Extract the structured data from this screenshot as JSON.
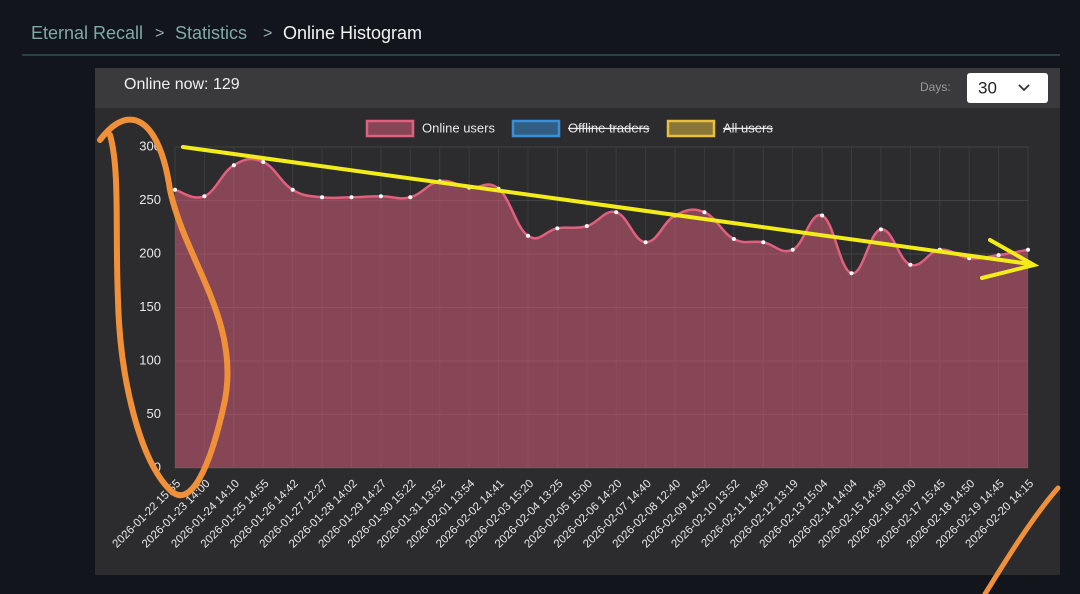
{
  "breadcrumb": {
    "items": [
      "Eternal Recall",
      "Statistics",
      "Online Histogram"
    ],
    "separator": ">"
  },
  "header": {
    "online_now": "Online now: 129",
    "days_label": "Days:",
    "days_value": "30"
  },
  "chart_data": {
    "type": "line",
    "categories": [
      "2026-01-22 15:55",
      "2026-01-23 14:00",
      "2026-01-24 14:10",
      "2026-01-25 14:55",
      "2026-01-26 14:42",
      "2026-01-27 12:27",
      "2026-01-28 14:02",
      "2026-01-29 14:27",
      "2026-01-30 15:22",
      "2026-01-31 13:52",
      "2026-02-01 13:54",
      "2026-02-02 14:41",
      "2026-02-03 15:20",
      "2026-02-04 13:25",
      "2026-02-05 15:00",
      "2026-02-06 14:20",
      "2026-02-07 14:40",
      "2026-02-08 12:40",
      "2026-02-09 14:52",
      "2026-02-10 13:52",
      "2026-02-11 14:39",
      "2026-02-12 13:19",
      "2026-02-13 15:04",
      "2026-02-14 14:04",
      "2026-02-15 14:39",
      "2026-02-16 15:00",
      "2026-02-17 15:45",
      "2026-02-18 14:50",
      "2026-02-19 14:45",
      "2026-02-20 14:15"
    ],
    "series": [
      {
        "name": "Online users",
        "color": "#e0607e",
        "fill": true,
        "values": [
          260,
          254,
          283,
          286,
          260,
          253,
          253,
          254,
          253,
          268,
          262,
          261,
          217,
          224,
          226,
          239,
          211,
          236,
          239,
          214,
          211,
          204,
          236,
          182,
          223,
          190,
          204,
          196,
          199,
          204
        ]
      },
      {
        "name": "Offline traders",
        "color": "#3a8fd8",
        "hidden": true
      },
      {
        "name": "All users",
        "color": "#e8c040",
        "hidden": true
      }
    ],
    "ylim": [
      0,
      300
    ],
    "yticks": [
      0,
      50,
      100,
      150,
      200,
      250,
      300
    ],
    "grid": true
  }
}
